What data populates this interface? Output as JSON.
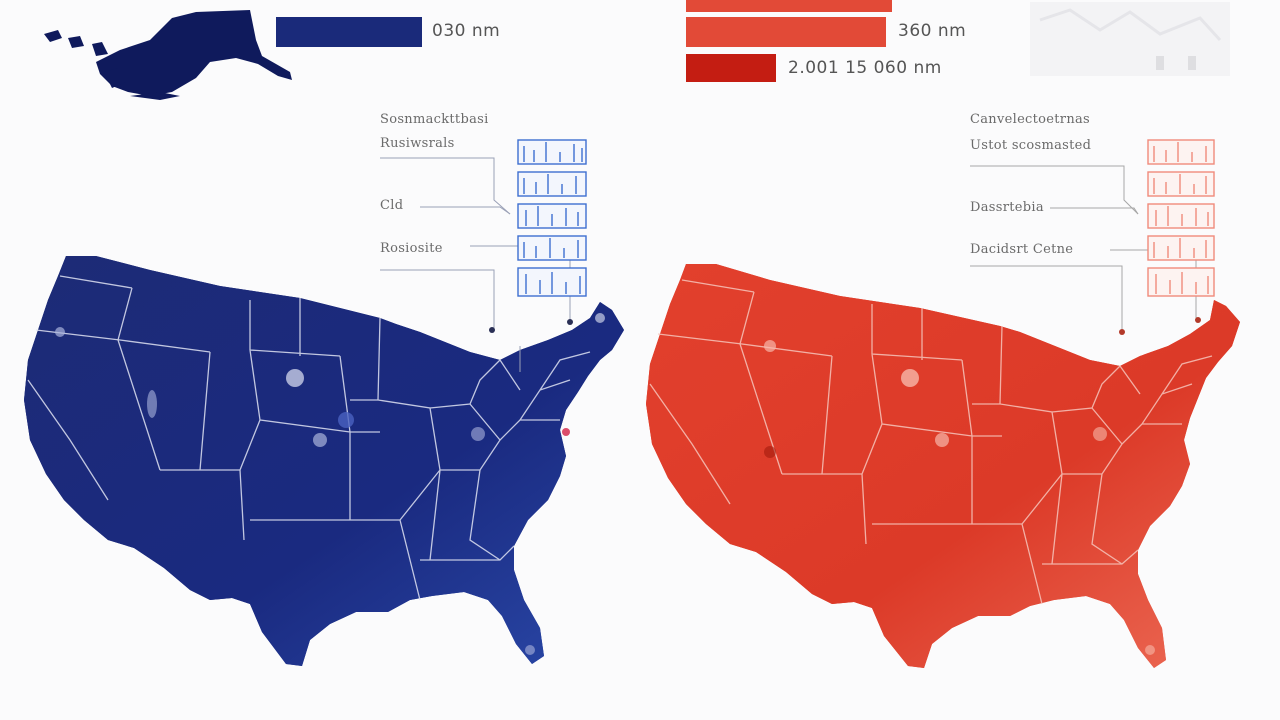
{
  "colors": {
    "blue_fill": "#1f2d7b",
    "blue_dark": "#141d5e",
    "blue_bar": "#1a2a7a",
    "red_fill": "#e0402e",
    "red_dark": "#c72d1d",
    "red_bar_1": "#e24a37",
    "red_bar_2": "#c41d12",
    "state_line": "#e8e8f0",
    "background": "#fbfbfc"
  },
  "left_panel": {
    "legend": [
      {
        "label": "030 nm",
        "value": null
      }
    ],
    "annotations": [
      {
        "id": "l1",
        "text": "Sosnmackttbasi"
      },
      {
        "id": "l2",
        "text": "Rusiwsrals"
      },
      {
        "id": "l3",
        "text": "Cld"
      },
      {
        "id": "l4",
        "text": "Rosiosite"
      }
    ]
  },
  "right_panel": {
    "legend": [
      {
        "label": "360 nm"
      },
      {
        "label": "2.001 15 060 nm"
      }
    ],
    "annotations": [
      {
        "id": "r1",
        "text": "Canvelectoetrnas"
      },
      {
        "id": "r2",
        "text": "Ustot scosmasted"
      },
      {
        "id": "r3",
        "text": "Dassrtebia"
      },
      {
        "id": "r4",
        "text": "Dacidsrt Cetne"
      }
    ]
  }
}
